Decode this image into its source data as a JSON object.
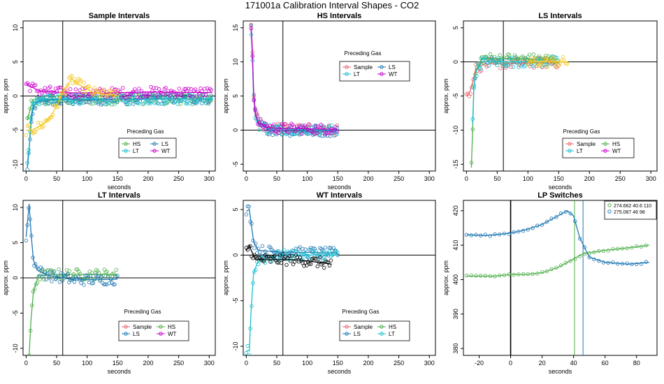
{
  "page": {
    "title": "171001a   Calibration Interval Shapes - CO2"
  },
  "chart_data": [
    {
      "type": "scatter",
      "title": "Sample Intervals",
      "xlabel": "seconds",
      "ylabel": "approx. ppm",
      "xlim": [
        -5,
        310
      ],
      "ylim": [
        -11,
        11
      ],
      "xticks": [
        0,
        50,
        100,
        150,
        200,
        250,
        300
      ],
      "yticks": [
        -10,
        -5,
        0,
        5,
        10
      ],
      "vline": [
        60
      ],
      "hline": [
        0
      ],
      "legend": {
        "title": "Preceding Gas",
        "entries": [
          "HS",
          "LS",
          "LT",
          "WT"
        ],
        "colors": [
          "#4DAF4A",
          "#1F78B4",
          "#17BECF",
          "#CC00CC"
        ],
        "placement": "center-bottom"
      },
      "series": [
        {
          "name": "HS",
          "color": "#4DAF4A",
          "points": [
            [
              2,
              -3.5
            ],
            [
              5,
              -2.5
            ],
            [
              8,
              -1.5
            ],
            [
              12,
              -1.0
            ],
            [
              20,
              -0.8
            ],
            [
              40,
              -0.6
            ],
            [
              80,
              -0.5
            ],
            [
              150,
              -0.5
            ],
            [
              250,
              -0.4
            ],
            [
              305,
              -0.5
            ]
          ]
        },
        {
          "name": "LS",
          "color": "#1F78B4",
          "points": [
            [
              2,
              -10.5
            ],
            [
              5,
              -8.0
            ],
            [
              8,
              -4.0
            ],
            [
              12,
              -1.5
            ],
            [
              20,
              -0.8
            ],
            [
              40,
              -0.5
            ],
            [
              100,
              -0.6
            ],
            [
              200,
              -0.4
            ],
            [
              305,
              -0.4
            ]
          ]
        },
        {
          "name": "LT",
          "color": "#17BECF",
          "points": [
            [
              2,
              -9.8
            ],
            [
              5,
              -7.5
            ],
            [
              8,
              -3.0
            ],
            [
              12,
              -1.0
            ],
            [
              25,
              -0.5
            ],
            [
              60,
              -0.4
            ],
            [
              150,
              -0.5
            ],
            [
              305,
              -0.4
            ]
          ]
        },
        {
          "name": "WT",
          "color": "#CC00CC",
          "points": [
            [
              0,
              1.8
            ],
            [
              20,
              0.8
            ],
            [
              60,
              0.5
            ],
            [
              120,
              0.4
            ],
            [
              200,
              0.6
            ],
            [
              305,
              0.5
            ]
          ]
        },
        {
          "name": "",
          "color": "#F5C518",
          "points": [
            [
              0,
              -5.0
            ],
            [
              10,
              -5.0
            ],
            [
              20,
              -4.5
            ],
            [
              30,
              -4.0
            ],
            [
              40,
              -3.0
            ],
            [
              50,
              -1.5
            ],
            [
              60,
              0.5
            ],
            [
              75,
              2.5
            ],
            [
              90,
              1.5
            ],
            [
              110,
              0.5
            ],
            [
              150,
              0.0
            ]
          ]
        }
      ]
    },
    {
      "type": "scatter",
      "title": "HS Intervals",
      "xlabel": "seconds",
      "ylabel": "approx. ppm",
      "xlim": [
        -5,
        310
      ],
      "ylim": [
        -6,
        16
      ],
      "xticks": [
        0,
        50,
        100,
        150,
        200,
        250,
        300
      ],
      "yticks": [
        -5,
        0,
        5,
        10,
        15
      ],
      "vline": [
        60
      ],
      "hline": [
        0
      ],
      "legend": {
        "title": "Preceding Gas",
        "entries": [
          "Sample",
          "LS",
          "LT",
          "WT"
        ],
        "colors": [
          "#E8666B",
          "#1F78B4",
          "#17BECF",
          "#CC00CC"
        ],
        "placement": "top-right"
      },
      "series": [
        {
          "name": "Sample",
          "color": "#E8666B",
          "points": [
            [
              8,
              15.5
            ],
            [
              10,
              12.0
            ],
            [
              12,
              6.0
            ],
            [
              15,
              2.5
            ],
            [
              20,
              1.2
            ],
            [
              30,
              0.5
            ],
            [
              60,
              0.2
            ],
            [
              100,
              0.1
            ],
            [
              150,
              0.0
            ]
          ]
        },
        {
          "name": "LS",
          "color": "#1F78B4",
          "points": [
            [
              8,
              15.0
            ],
            [
              10,
              11.0
            ],
            [
              12,
              5.0
            ],
            [
              15,
              2.0
            ],
            [
              20,
              0.8
            ],
            [
              40,
              0.0
            ],
            [
              100,
              -0.2
            ],
            [
              150,
              -0.1
            ]
          ]
        },
        {
          "name": "LT",
          "color": "#17BECF",
          "points": [
            [
              8,
              14.5
            ],
            [
              10,
              10.5
            ],
            [
              12,
              5.0
            ],
            [
              15,
              2.0
            ],
            [
              20,
              0.8
            ],
            [
              40,
              0.2
            ],
            [
              100,
              0.1
            ],
            [
              150,
              0.0
            ]
          ]
        },
        {
          "name": "WT",
          "color": "#CC00CC",
          "points": [
            [
              8,
              15.0
            ],
            [
              10,
              11.5
            ],
            [
              12,
              5.5
            ],
            [
              15,
              2.2
            ],
            [
              20,
              1.0
            ],
            [
              40,
              0.3
            ],
            [
              100,
              0.2
            ],
            [
              150,
              0.1
            ]
          ]
        }
      ]
    },
    {
      "type": "scatter",
      "title": "LS Intervals",
      "xlabel": "seconds",
      "ylabel": "approx. ppm",
      "xlim": [
        -5,
        310
      ],
      "ylim": [
        -16,
        6
      ],
      "xticks": [
        0,
        50,
        100,
        150,
        200,
        250,
        300
      ],
      "yticks": [
        -15,
        -10,
        -5,
        0,
        5
      ],
      "vline": [
        60
      ],
      "hline": [
        0
      ],
      "legend": {
        "title": "Preceding Gas",
        "entries": [
          "Sample",
          "HS",
          "LT",
          "WT"
        ],
        "colors": [
          "#E8666B",
          "#4DAF4A",
          "#17BECF",
          "#CC00CC"
        ],
        "placement": "center-bottom"
      },
      "series": [
        {
          "name": "Sample",
          "color": "#E8666B",
          "points": [
            [
              0,
              -5.0
            ],
            [
              5,
              -4.5
            ],
            [
              10,
              -3.0
            ],
            [
              15,
              -1.0
            ],
            [
              30,
              -0.3
            ],
            [
              80,
              -0.2
            ],
            [
              150,
              -0.1
            ]
          ]
        },
        {
          "name": "HS",
          "color": "#4DAF4A",
          "points": [
            [
              8,
              -15.5
            ],
            [
              10,
              -10.0
            ],
            [
              12,
              -4.0
            ],
            [
              15,
              -1.5
            ],
            [
              25,
              0.5
            ],
            [
              60,
              0.5
            ],
            [
              100,
              0.4
            ],
            [
              150,
              0.4
            ]
          ]
        },
        {
          "name": "LT",
          "color": "#17BECF",
          "points": [
            [
              10,
              -9.0
            ],
            [
              12,
              -4.0
            ],
            [
              15,
              -1.5
            ],
            [
              25,
              0.0
            ],
            [
              80,
              0.0
            ],
            [
              150,
              0.0
            ]
          ]
        },
        {
          "name": "",
          "color": "#F5C518",
          "points": [
            [
              100,
              0.0
            ],
            [
              130,
              0.0
            ],
            [
              165,
              0.0
            ]
          ]
        }
      ]
    },
    {
      "type": "scatter",
      "title": "LT Intervals",
      "xlabel": "seconds",
      "ylabel": "approx. ppm",
      "xlim": [
        -5,
        310
      ],
      "ylim": [
        -11,
        11
      ],
      "xticks": [
        0,
        50,
        100,
        150,
        200,
        250,
        300
      ],
      "yticks": [
        -10,
        -5,
        0,
        5,
        10
      ],
      "vline": [
        60
      ],
      "hline": [
        0
      ],
      "legend": {
        "title": "Preceding Gas",
        "entries": [
          "Sample",
          "HS",
          "LS",
          "WT"
        ],
        "colors": [
          "#E8666B",
          "#4DAF4A",
          "#1F78B4",
          "#CC00CC"
        ],
        "placement": "center-bottom"
      },
      "series": [
        {
          "name": "HS",
          "color": "#4DAF4A",
          "points": [
            [
              5,
              -11.0
            ],
            [
              8,
              -6.0
            ],
            [
              12,
              -2.0
            ],
            [
              20,
              0.3
            ],
            [
              40,
              0.5
            ],
            [
              100,
              0.5
            ],
            [
              150,
              0.5
            ]
          ]
        },
        {
          "name": "LS",
          "color": "#1F78B4",
          "points": [
            [
              0,
              5.8
            ],
            [
              5,
              10.5
            ],
            [
              8,
              6.5
            ],
            [
              12,
              2.5
            ],
            [
              20,
              1.0
            ],
            [
              40,
              0.3
            ],
            [
              80,
              -0.3
            ],
            [
              150,
              -0.2
            ]
          ]
        }
      ]
    },
    {
      "type": "scatter",
      "title": "WT Intervals",
      "xlabel": "seconds",
      "ylabel": "approx. ppm",
      "xlim": [
        -5,
        310
      ],
      "ylim": [
        -11,
        6
      ],
      "xticks": [
        0,
        50,
        100,
        150,
        200,
        250,
        300
      ],
      "yticks": [
        -10,
        -5,
        0,
        5
      ],
      "vline": [
        60
      ],
      "hline": [
        0
      ],
      "legend": {
        "title": "Preceding Gas",
        "entries": [
          "Sample",
          "HS",
          "LS",
          "LT"
        ],
        "colors": [
          "#E8666B",
          "#4DAF4A",
          "#1F78B4",
          "#17BECF"
        ],
        "placement": "center-bottom"
      },
      "series": [
        {
          "name": "LS",
          "color": "#1F78B4",
          "points": [
            [
              0,
              4.8
            ],
            [
              5,
              5.0
            ],
            [
              8,
              3.5
            ],
            [
              12,
              1.5
            ],
            [
              20,
              0.5
            ],
            [
              60,
              0.3
            ],
            [
              100,
              0.3
            ],
            [
              150,
              0.2
            ]
          ]
        },
        {
          "name": "LT",
          "color": "#17BECF",
          "points": [
            [
              0,
              -10.5
            ],
            [
              5,
              -10.5
            ],
            [
              8,
              -6.0
            ],
            [
              12,
              -2.0
            ],
            [
              20,
              -0.5
            ],
            [
              60,
              0.0
            ],
            [
              150,
              0.0
            ]
          ]
        },
        {
          "name": "",
          "color": "#000000",
          "points": [
            [
              0,
              0.5
            ],
            [
              5,
              1.0
            ],
            [
              15,
              -0.5
            ],
            [
              40,
              -0.5
            ],
            [
              80,
              -0.5
            ],
            [
              120,
              -0.8
            ],
            [
              140,
              -1.0
            ]
          ]
        }
      ]
    },
    {
      "type": "scatter",
      "title": "LP Switches",
      "xlabel": "seconds",
      "ylabel": "approx. ppm",
      "xlim": [
        -30,
        93
      ],
      "ylim": [
        378,
        423
      ],
      "xticks": [
        -20,
        0,
        20,
        40,
        60,
        80
      ],
      "yticks": [
        380,
        390,
        400,
        410,
        420
      ],
      "vline": [
        0
      ],
      "extra_vlines": [
        {
          "x": 40.6,
          "color": "#4DAF4A"
        },
        {
          "x": 46,
          "color": "#1F78B4"
        }
      ],
      "legend": {
        "entries": [
          "274.662 40.6 110",
          "275.087 46 98"
        ],
        "colors": [
          "#4DAF4A",
          "#1F78B4"
        ],
        "placement": "top-right"
      },
      "series": [
        {
          "name": "274.662 40.6 110",
          "color": "#4DAF4A",
          "points": [
            [
              -28,
              401.0
            ],
            [
              -10,
              401.0
            ],
            [
              0,
              401.5
            ],
            [
              10,
              401.5
            ],
            [
              20,
              402.0
            ],
            [
              30,
              403.5
            ],
            [
              40,
              406.0
            ],
            [
              46,
              407.5
            ],
            [
              60,
              408.5
            ],
            [
              70,
              409.0
            ],
            [
              80,
              409.5
            ],
            [
              88,
              410.0
            ]
          ]
        },
        {
          "name": "275.087 46 98",
          "color": "#1F78B4",
          "points": [
            [
              -28,
              413.0
            ],
            [
              -15,
              412.8
            ],
            [
              0,
              413.5
            ],
            [
              10,
              414.5
            ],
            [
              20,
              416.0
            ],
            [
              30,
              418.5
            ],
            [
              36,
              420.0
            ],
            [
              40,
              418.5
            ],
            [
              44,
              412.0
            ],
            [
              50,
              406.5
            ],
            [
              60,
              405.0
            ],
            [
              75,
              404.5
            ],
            [
              88,
              405.0
            ]
          ]
        }
      ]
    }
  ]
}
